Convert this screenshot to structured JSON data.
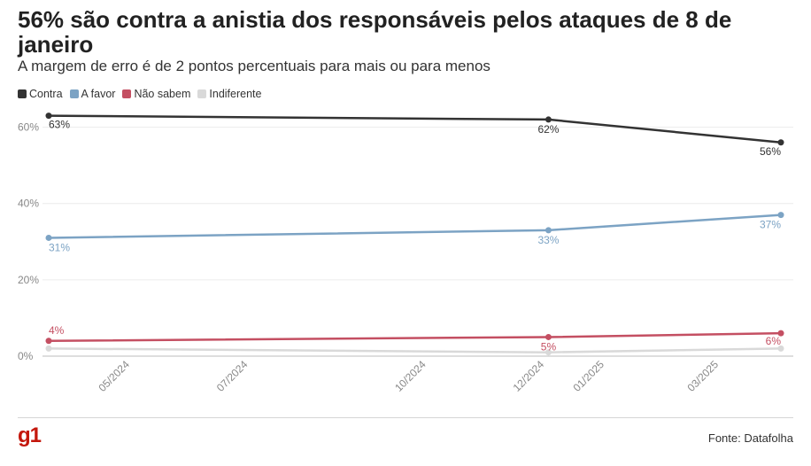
{
  "header": {
    "title": "56% são contra a anistia dos responsáveis pelos ataques de 8 de janeiro",
    "subtitle": "A margem de erro é de 2 pontos percentuais para mais ou para menos"
  },
  "footer": {
    "logo": "g1",
    "source": "Fonte: Datafolha"
  },
  "chart_data": {
    "type": "line",
    "title": "56% são contra a anistia dos responsáveis pelos ataques de 8 de janeiro",
    "subtitle": "A margem de erro é de 2 pontos percentuais para mais ou para menos",
    "x": [
      "2024-03-20",
      "2024-12-03",
      "2025-04-02"
    ],
    "xticks": [
      "05/2024",
      "07/2024",
      "10/2024",
      "12/2024",
      "01/2025",
      "03/2025"
    ],
    "xtick_dates": [
      "2024-05-01",
      "2024-07-01",
      "2024-10-01",
      "2024-12-01",
      "2025-01-01",
      "2025-03-01"
    ],
    "yticks": [
      "0%",
      "20%",
      "40%",
      "60%"
    ],
    "ytick_values": [
      0,
      20,
      40,
      60
    ],
    "ylim": [
      0,
      65
    ],
    "grid": true,
    "legend_position": "top-left",
    "series": [
      {
        "name": "Contra",
        "color": "#333333",
        "values": [
          63,
          62,
          56
        ],
        "labels": [
          "63%",
          "62%",
          "56%"
        ]
      },
      {
        "name": "A favor",
        "color": "#7ca3c4",
        "values": [
          31,
          33,
          37
        ],
        "labels": [
          "31%",
          "33%",
          "37%"
        ]
      },
      {
        "name": "Não sabem",
        "color": "#c44f62",
        "values": [
          4,
          5,
          6
        ],
        "labels": [
          "4%",
          "5%",
          "6%"
        ]
      },
      {
        "name": "Indiferente",
        "color": "#d9d9d9",
        "values": [
          2,
          1,
          2
        ],
        "labels": []
      }
    ]
  }
}
